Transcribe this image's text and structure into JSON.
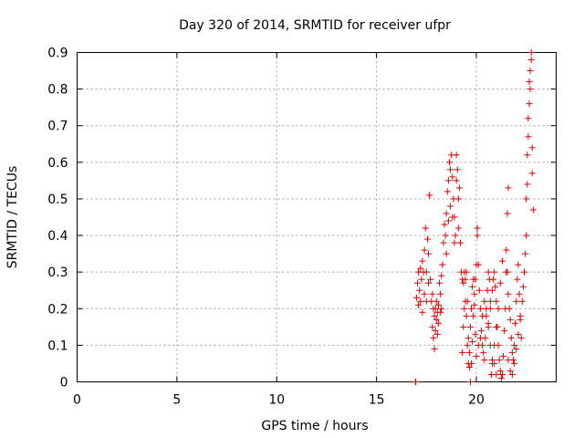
{
  "chart_data": {
    "type": "scatter",
    "title": "Day 320 of 2014, SRMTID for receiver ufpr",
    "xlabel": "GPS time / hours",
    "ylabel": "SRMTID / TECUs",
    "xlim": [
      0,
      24
    ],
    "ylim": [
      0,
      0.9
    ],
    "xticks": [
      0,
      5,
      10,
      15,
      20
    ],
    "xtick_labels": [
      "0",
      "5",
      "10",
      "15",
      "20"
    ],
    "yticks": [
      0,
      0.1,
      0.2,
      0.3,
      0.4,
      0.5,
      0.6,
      0.7,
      0.8,
      0.9
    ],
    "ytick_labels": [
      "0",
      "0.1",
      "0.2",
      "0.3",
      "0.4",
      "0.5",
      "0.6",
      "0.7",
      "0.8",
      "0.9"
    ],
    "grid": true,
    "marker": "+",
    "color": "#e00000",
    "series": [
      {
        "name": "SRMTID",
        "x": [
          16.95,
          16.97,
          17.0,
          17.05,
          17.1,
          17.1,
          17.15,
          17.2,
          17.2,
          17.25,
          17.3,
          17.3,
          17.35,
          17.4,
          17.4,
          17.45,
          17.5,
          17.5,
          17.55,
          17.6,
          17.6,
          17.65,
          17.7,
          17.75,
          17.8,
          17.8,
          17.85,
          17.85,
          17.9,
          17.9,
          17.95,
          17.95,
          18.0,
          18.0,
          18.05,
          18.05,
          18.1,
          18.1,
          18.15,
          18.2,
          18.2,
          18.25,
          18.25,
          18.3,
          18.35,
          18.4,
          18.45,
          18.5,
          18.5,
          18.55,
          18.6,
          18.6,
          18.65,
          18.7,
          18.7,
          18.75,
          18.8,
          18.8,
          18.85,
          18.9,
          18.9,
          18.95,
          19.0,
          19.0,
          19.05,
          19.1,
          19.1,
          19.15,
          19.2,
          19.25,
          19.3,
          19.35,
          19.4,
          19.45,
          19.5,
          19.55,
          19.6,
          19.65,
          19.7,
          19.75,
          19.8,
          19.85,
          19.9,
          19.95,
          20.0,
          19.3,
          19.35,
          19.4,
          19.45,
          19.5,
          19.55,
          19.6,
          19.65,
          19.7,
          19.75,
          19.8,
          19.85,
          19.9,
          19.95,
          20.0,
          20.05,
          20.05,
          20.1,
          20.15,
          20.2,
          20.25,
          20.3,
          20.35,
          20.4,
          20.45,
          20.5,
          20.55,
          20.6,
          20.65,
          20.7,
          20.1,
          20.2,
          20.3,
          20.4,
          20.5,
          20.6,
          20.7,
          20.8,
          20.9,
          21.0,
          20.6,
          20.7,
          20.8,
          20.85,
          20.9,
          20.95,
          21.0,
          21.05,
          21.1,
          21.15,
          21.2,
          21.25,
          21.3,
          21.35,
          21.4,
          21.45,
          21.5,
          21.55,
          21.6,
          20.75,
          20.8,
          20.9,
          21.0,
          21.1,
          21.2,
          21.3,
          21.5,
          21.55,
          21.6,
          21.65,
          21.7,
          21.75,
          21.8,
          21.85,
          21.9,
          21.95,
          22.0,
          22.05,
          22.1,
          22.15,
          22.2,
          22.25,
          21.6,
          21.7,
          21.8,
          21.9,
          22.0,
          22.1,
          22.2,
          22.3,
          22.35,
          22.4,
          22.45,
          22.5,
          22.5,
          22.55,
          22.55,
          22.6,
          22.6,
          22.65,
          22.65,
          22.7,
          22.7,
          22.75,
          22.75,
          22.8,
          22.8,
          22.85
        ],
        "y": [
          0.0,
          0.0,
          0.23,
          0.27,
          0.3,
          0.21,
          0.25,
          0.31,
          0.22,
          0.28,
          0.33,
          0.19,
          0.3,
          0.36,
          0.24,
          0.42,
          0.3,
          0.22,
          0.39,
          0.35,
          0.27,
          0.51,
          0.28,
          0.22,
          0.24,
          0.15,
          0.2,
          0.12,
          0.18,
          0.09,
          0.2,
          0.14,
          0.17,
          0.22,
          0.19,
          0.13,
          0.21,
          0.16,
          0.27,
          0.19,
          0.24,
          0.29,
          0.2,
          0.32,
          0.38,
          0.43,
          0.4,
          0.46,
          0.35,
          0.52,
          0.55,
          0.44,
          0.6,
          0.58,
          0.48,
          0.62,
          0.56,
          0.45,
          0.5,
          0.45,
          0.38,
          0.4,
          0.62,
          0.55,
          0.58,
          0.5,
          0.42,
          0.53,
          0.38,
          0.3,
          0.28,
          0.27,
          0.3,
          0.22,
          0.18,
          0.1,
          0.05,
          0.08,
          0.15,
          0.2,
          0.26,
          0.28,
          0.21,
          0.13,
          0.07,
          0.08,
          0.15,
          0.2,
          0.28,
          0.3,
          0.22,
          0.12,
          0.04,
          0.0,
          0.05,
          0.11,
          0.18,
          0.24,
          0.28,
          0.32,
          0.42,
          0.4,
          0.32,
          0.25,
          0.2,
          0.14,
          0.1,
          0.08,
          0.06,
          0.12,
          0.18,
          0.25,
          0.3,
          0.28,
          0.22,
          0.1,
          0.12,
          0.18,
          0.22,
          0.2,
          0.15,
          0.1,
          0.06,
          0.05,
          0.02,
          0.16,
          0.2,
          0.25,
          0.28,
          0.3,
          0.26,
          0.22,
          0.15,
          0.1,
          0.06,
          0.03,
          0.01,
          0.02,
          0.07,
          0.14,
          0.2,
          0.3,
          0.46,
          0.53,
          0.02,
          0.05,
          0.1,
          0.15,
          0.2,
          0.27,
          0.33,
          0.36,
          0.3,
          0.24,
          0.2,
          0.17,
          0.12,
          0.08,
          0.06,
          0.1,
          0.16,
          0.22,
          0.28,
          0.32,
          0.24,
          0.18,
          0.12,
          0.06,
          0.03,
          0.02,
          0.05,
          0.09,
          0.13,
          0.17,
          0.22,
          0.26,
          0.3,
          0.35,
          0.4,
          0.5,
          0.54,
          0.62,
          0.67,
          0.72,
          0.76,
          0.82,
          0.8,
          0.85,
          0.88,
          0.9,
          0.64,
          0.57,
          0.47
        ]
      }
    ]
  }
}
